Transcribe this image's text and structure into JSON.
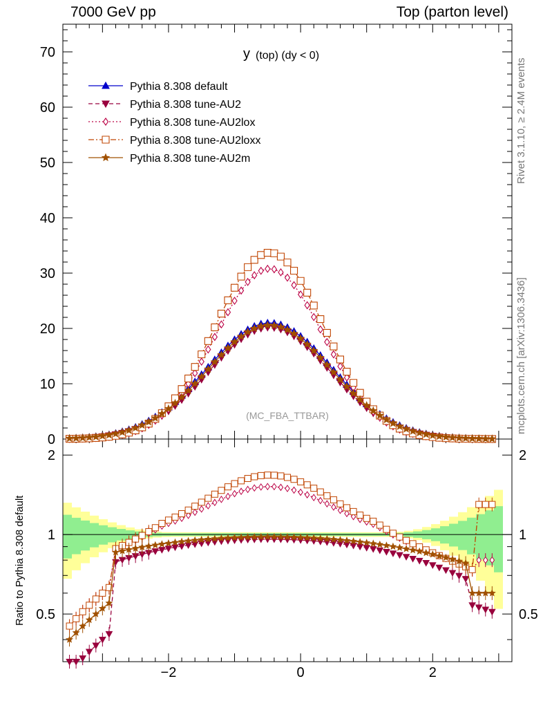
{
  "header": {
    "left": "7000 GeV pp",
    "right": "Top (parton level)"
  },
  "side": {
    "top": "Rivet 3.1.10, ≥ 2.4M events",
    "bottom": "mcplots.cern.ch [arXiv:1306.3436]"
  },
  "colors": {
    "default": "#0000cc",
    "au2": "#99003d",
    "au2lox": "#bb0044",
    "au2loxx": "#c04400",
    "au2m": "#a05000",
    "band_inner": "#90ee90",
    "band_outer": "#ffff99"
  },
  "chart_data": {
    "type": "line",
    "title_main": "y",
    "title_sub": "(top) (dy < 0)",
    "watermark": "(MC_FBA_TTBAR)",
    "ratio_ylabel": "Ratio to Pythia 8.308 default",
    "xlim": [
      -3.6,
      3.2
    ],
    "ylim": [
      0,
      75
    ],
    "ratio_ylim": [
      0.33,
      2.3
    ],
    "xticks": [
      -2,
      0,
      2
    ],
    "xtick_labels": [
      "−2",
      "0",
      "2"
    ],
    "yticks": [
      0,
      10,
      20,
      30,
      40,
      50,
      60,
      70
    ],
    "ratio_yticks": [
      0.5,
      1,
      2
    ],
    "ratio_ytick_labels": [
      "0.5",
      "1",
      "2"
    ],
    "legend_position": "top-left",
    "series": [
      {
        "name": "Pythia 8.308 default",
        "amp": 21.0,
        "center": -0.47,
        "width": 0.95,
        "marker": "triangle-up",
        "dash": "solid",
        "ratio": "one"
      },
      {
        "name": "Pythia 8.308 tune-AU2",
        "amp": 20.2,
        "center": -0.47,
        "width": 0.92,
        "marker": "triangle-down",
        "dash": "6,4",
        "ratio": "au2"
      },
      {
        "name": "Pythia 8.308 tune-AU2lox",
        "amp": 30.8,
        "center": -0.47,
        "width": 0.82,
        "marker": "diamond",
        "dash": "2,3",
        "ratio": "lox"
      },
      {
        "name": "Pythia 8.308 tune-AU2loxx",
        "amp": 33.7,
        "center": -0.47,
        "width": 0.82,
        "marker": "square",
        "dash": "8,3,2,3",
        "ratio": "loxx"
      },
      {
        "name": "Pythia 8.308 tune-AU2m",
        "amp": 20.6,
        "center": -0.47,
        "width": 0.94,
        "marker": "star",
        "dash": "solid",
        "ratio": "au2m"
      }
    ]
  }
}
